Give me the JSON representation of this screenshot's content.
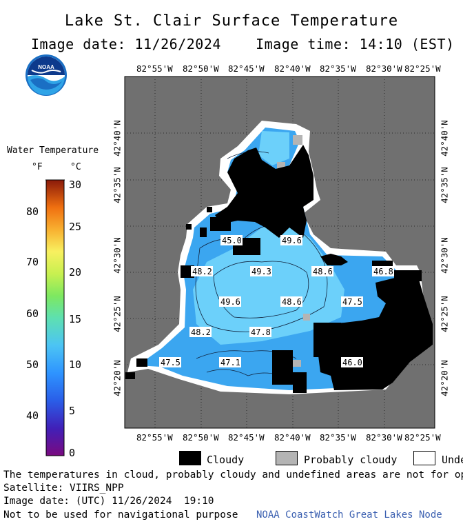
{
  "header": {
    "title": "Lake St. Clair Surface Temperature",
    "image_date_label": "Image date: 11/26/2024",
    "image_time_label": "Image time: 14:10 (EST)",
    "logo_text": "NOAA"
  },
  "axes": {
    "longitude_ticks": [
      "82°55'W",
      "82°50'W",
      "82°45'W",
      "82°40'W",
      "82°35'W",
      "82°30'W",
      "82°25'W"
    ],
    "latitude_ticks": [
      "42°40'N",
      "42°35'N",
      "42°30'N",
      "42°25'N",
      "42°20'N"
    ]
  },
  "legend": {
    "title": "Water Temperature",
    "unit_f": "°F",
    "unit_c": "°C",
    "fahrenheit_ticks": [
      "80",
      "70",
      "60",
      "50",
      "40"
    ],
    "celsius_ticks": [
      "30",
      "25",
      "20",
      "15",
      "10",
      "5",
      "0"
    ],
    "range_c": [
      0,
      30
    ]
  },
  "map": {
    "land_color": "#6e6e6e",
    "cloud_color": "#000000",
    "water_low_color": "#3399ff",
    "water_high_color": "#66ccff",
    "temperature_labels_f": [
      "45.0",
      "49.6",
      "48.2",
      "49.3",
      "48.6",
      "46.8",
      "49.6",
      "48.6",
      "47.5",
      "48.2",
      "47.8",
      "47.5",
      "47.1",
      "46.0"
    ]
  },
  "key": {
    "cloudy": "Cloudy",
    "probably_cloudy": "Probably cloudy",
    "undefined": "Undefined"
  },
  "footer": {
    "note": "The temperatures in cloud, probably cloudy and undefined areas are not for operational use",
    "satellite": "Satellite: VIIRS_NPP",
    "utc": "Image date: (UTC) 11/26/2024  19:10",
    "warning": "Not to be used for navigational purpose",
    "credit": "NOAA CoastWatch Great Lakes Node"
  }
}
